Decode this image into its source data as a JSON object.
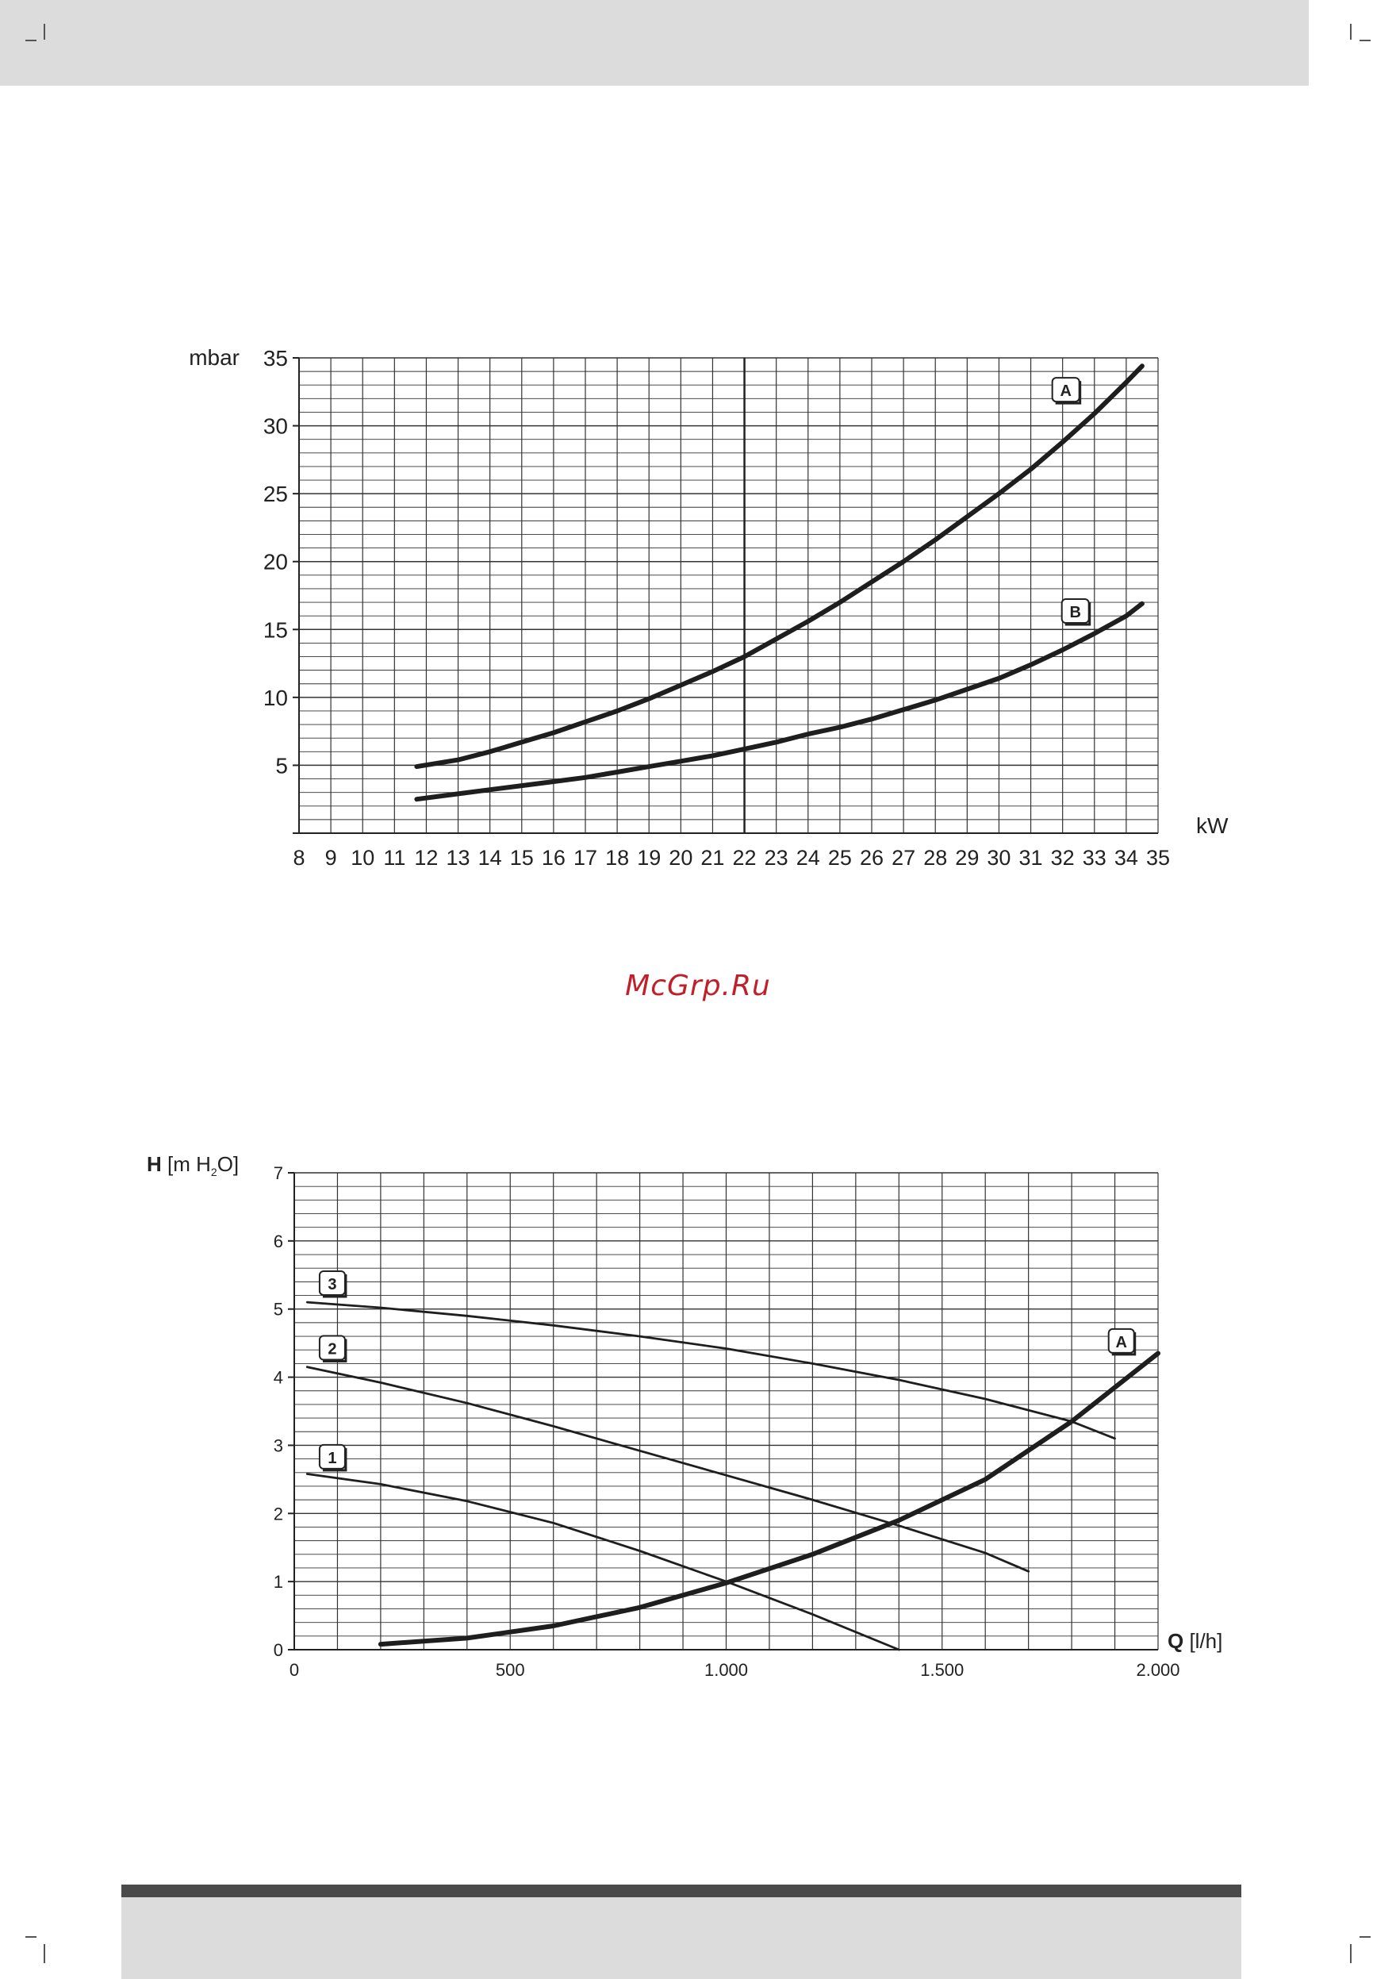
{
  "page": {
    "watermark": "McGrp.Ru",
    "watermark_color": "#c0202a"
  },
  "chart_data": [
    {
      "type": "line",
      "ylabel": "mbar",
      "xlabel": "kW",
      "xlim": [
        8,
        35
      ],
      "ylim": [
        0,
        35
      ],
      "x_ticks": [
        "8",
        "9",
        "10",
        "11",
        "12",
        "13",
        "14",
        "15",
        "16",
        "17",
        "18",
        "19",
        "20",
        "21",
        "22",
        "23",
        "24",
        "25",
        "26",
        "27",
        "28",
        "29",
        "30",
        "31",
        "32",
        "33",
        "34",
        "35"
      ],
      "y_ticks": [
        "5",
        "10",
        "15",
        "20",
        "25",
        "30",
        "35"
      ],
      "grid": true,
      "reference_line_x": 22,
      "series": [
        {
          "name": "A",
          "x": [
            11.7,
            13,
            14,
            15,
            16,
            17,
            18,
            19,
            20,
            21,
            22,
            23,
            24,
            25,
            26,
            27,
            28,
            29,
            30,
            31,
            32,
            33,
            34,
            34.5
          ],
          "y": [
            4.9,
            5.4,
            6,
            6.7,
            7.4,
            8.2,
            9,
            9.9,
            10.9,
            11.9,
            13,
            14.3,
            15.6,
            17,
            18.5,
            20,
            21.6,
            23.3,
            25,
            26.8,
            28.8,
            30.9,
            33.2,
            34.4
          ]
        },
        {
          "name": "B",
          "x": [
            11.7,
            13,
            14,
            15,
            16,
            17,
            18,
            19,
            20,
            21,
            22,
            23,
            24,
            25,
            26,
            27,
            28,
            29,
            30,
            31,
            32,
            33,
            34,
            34.5
          ],
          "y": [
            2.5,
            2.9,
            3.2,
            3.5,
            3.8,
            4.1,
            4.5,
            4.9,
            5.3,
            5.7,
            6.2,
            6.7,
            7.3,
            7.8,
            8.4,
            9.1,
            9.8,
            10.6,
            11.4,
            12.4,
            13.5,
            14.7,
            16,
            16.9
          ]
        }
      ]
    },
    {
      "type": "line",
      "ylabel_bold": "H",
      "ylabel_rest": "[m H",
      "ylabel_sub": "2",
      "ylabel_end": "O]",
      "xlabel_bold": "Q",
      "xlabel_rest": "[l/h]",
      "xlim": [
        0,
        2000
      ],
      "ylim": [
        0,
        7
      ],
      "x_ticks": [
        "0",
        "500",
        "1.000",
        "1.500",
        "2.000"
      ],
      "y_ticks": [
        "0",
        "1",
        "2",
        "3",
        "4",
        "5",
        "6",
        "7"
      ],
      "grid": true,
      "series": [
        {
          "name": "3",
          "x": [
            30,
            200,
            400,
            600,
            800,
            1000,
            1200,
            1400,
            1600,
            1800,
            1900
          ],
          "y": [
            5.1,
            5.02,
            4.9,
            4.76,
            4.6,
            4.42,
            4.2,
            3.96,
            3.68,
            3.35,
            3.1
          ]
        },
        {
          "name": "2",
          "x": [
            30,
            200,
            400,
            600,
            800,
            1000,
            1200,
            1400,
            1600,
            1700
          ],
          "y": [
            4.15,
            3.92,
            3.62,
            3.28,
            2.92,
            2.56,
            2.2,
            1.82,
            1.42,
            1.15
          ]
        },
        {
          "name": "1",
          "x": [
            30,
            200,
            400,
            600,
            800,
            1000,
            1200,
            1400
          ],
          "y": [
            2.58,
            2.43,
            2.18,
            1.86,
            1.45,
            1.0,
            0.52,
            0.0
          ]
        },
        {
          "name": "A",
          "x": [
            200,
            400,
            600,
            800,
            1000,
            1200,
            1400,
            1600,
            1800,
            2000
          ],
          "y": [
            0.08,
            0.17,
            0.35,
            0.62,
            0.98,
            1.4,
            1.9,
            2.5,
            3.35,
            4.35
          ]
        }
      ]
    }
  ]
}
